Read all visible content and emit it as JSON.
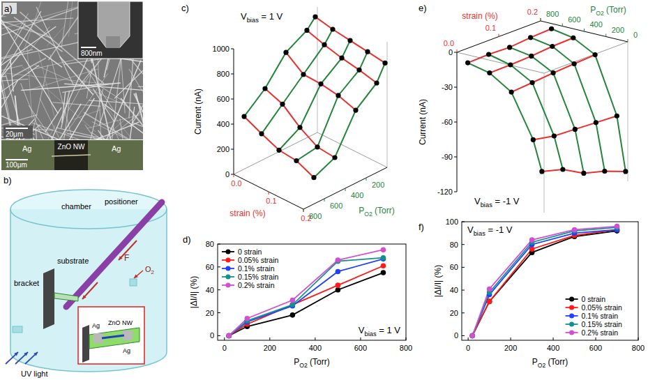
{
  "figure": {
    "a": {
      "label": "a)",
      "scale_main": "20μm",
      "scale_inset": "800nm",
      "electrode_left": "Ag",
      "nanowire": "ZnO NW",
      "electrode_right": "Ag",
      "scale_device": "100μm"
    },
    "b": {
      "label": "b)",
      "chamber": "chamber",
      "positioner": "positioner",
      "force": "F",
      "bracket": "bracket",
      "substrate": "substrate",
      "gas": [
        "O",
        "2"
      ],
      "light": "UV light",
      "inset_left": "Ag",
      "inset_wire": "ZnO NW",
      "inset_right": "Ag"
    }
  },
  "chart_data": [
    {
      "type": "surface3d",
      "panel": "c)",
      "annotation": [
        "V",
        "bias",
        " = 1 V"
      ],
      "x_label": [
        "P",
        "O2",
        " (Torr)"
      ],
      "strain_label": "strain (%)",
      "y_label": "Current (nA)",
      "x": [
        20,
        100,
        300,
        500,
        700
      ],
      "xlim": [
        0,
        800
      ],
      "xticks": [
        200,
        400,
        600,
        800
      ],
      "strain_lim": [
        0,
        0.2
      ],
      "strain_ticks": [
        {
          "value": 0,
          "label": "0.0"
        },
        {
          "value": 0.1,
          "label": "0.1"
        },
        {
          "value": 0.2,
          "label": "0.2"
        }
      ],
      "ylim": [
        0,
        1000
      ],
      "yticks": [
        0,
        200,
        400,
        600,
        800,
        1000
      ],
      "color": "#e8312f",
      "marker": "circle",
      "series": [
        {
          "strain": 0,
          "color": "#23843a",
          "values": [
            930,
            856,
            763,
            558,
            419
          ]
        },
        {
          "strain": 0.05,
          "color": "#23843a",
          "values": [
            900,
            810,
            657,
            504,
            351
          ]
        },
        {
          "strain": 0.1,
          "color": "#23843a",
          "values": [
            880,
            774,
            651,
            387,
            290
          ]
        },
        {
          "strain": 0.15,
          "color": "#23843a",
          "values": [
            860,
            748,
            628,
            301,
            275
          ]
        },
        {
          "strain": 0.2,
          "color": "#23843a",
          "values": [
            840,
            714,
            580,
            286,
            210
          ]
        }
      ]
    },
    {
      "type": "line",
      "panel": "d)",
      "annotation": [
        "V",
        "bias",
        " = 1 V"
      ],
      "x_label": [
        "P",
        "O2",
        " (Torr)"
      ],
      "y_label": "|ΔI/I| (%)",
      "x": [
        20,
        100,
        300,
        500,
        700
      ],
      "xlim": [
        -30,
        800
      ],
      "xticks": [
        0,
        200,
        400,
        600,
        800
      ],
      "ylim": [
        -4,
        80
      ],
      "yticks": [
        0,
        20,
        40,
        60,
        80
      ],
      "legend": "upper left",
      "marker": "circle",
      "series": [
        {
          "name": "0 strain",
          "color": "#000000",
          "values": [
            0,
            8,
            18,
            40,
            55
          ]
        },
        {
          "name": "0.05% strain",
          "color": "#ff1a1a",
          "values": [
            0,
            10,
            27,
            44,
            61
          ]
        },
        {
          "name": "0.1% strain",
          "color": "#2040ff",
          "values": [
            0,
            12,
            26,
            56,
            67
          ]
        },
        {
          "name": "0.15% strain",
          "color": "#12908e",
          "values": [
            0,
            13,
            27,
            65,
            68
          ]
        },
        {
          "name": "0.2% strain",
          "color": "#d24fd2",
          "values": [
            0,
            15,
            31,
            66,
            75
          ]
        }
      ]
    },
    {
      "type": "surface3d",
      "panel": "e)",
      "annotation": [
        "V",
        "bias",
        " = -1 V"
      ],
      "x_label": [
        "P",
        "O2",
        " (Torr)"
      ],
      "strain_label": "strain (%)",
      "y_label": "Current (nA)",
      "x": [
        20,
        100,
        300,
        500,
        700
      ],
      "xlim": [
        0,
        800
      ],
      "xticks": [
        0,
        200,
        400,
        600,
        800
      ],
      "strain_lim": [
        0,
        0.2
      ],
      "strain_ticks": [
        {
          "value": 0,
          "label": "0.0"
        },
        {
          "value": 0.1,
          "label": "0.1"
        },
        {
          "value": 0.2,
          "label": "0.2"
        }
      ],
      "ylim": [
        -120,
        0
      ],
      "yticks": [
        -120,
        -90,
        -60,
        -30,
        0
      ],
      "color": "#e8312f",
      "marker": "circle",
      "series": [
        {
          "strain": 0,
          "color": "#23843a",
          "values": [
            -85,
            -59.5,
            -23,
            -11,
            -6.8
          ]
        },
        {
          "strain": 0.05,
          "color": "#23843a",
          "values": [
            -90,
            -63,
            -21.6,
            -10.8,
            -6.3
          ]
        },
        {
          "strain": 0.1,
          "color": "#23843a",
          "values": [
            -100,
            -64,
            -20,
            -10,
            -7
          ]
        },
        {
          "strain": 0.15,
          "color": "#23843a",
          "values": [
            -105,
            -65,
            -18.9,
            -8.4,
            -5.3
          ]
        },
        {
          "strain": 0.2,
          "color": "#23843a",
          "values": [
            -112,
            -66,
            -17.9,
            -7.8,
            -4.5
          ]
        }
      ]
    },
    {
      "type": "line",
      "panel": "f)",
      "annotation": [
        "V",
        "bias",
        " = -1 V"
      ],
      "x_label": [
        "P",
        "O2",
        " (Torr)"
      ],
      "y_label": "|ΔI/I| (%)",
      "x": [
        20,
        100,
        300,
        500,
        700
      ],
      "xlim": [
        -30,
        800
      ],
      "xticks": [
        0,
        200,
        400,
        600,
        800
      ],
      "ylim": [
        -4,
        100
      ],
      "yticks": [
        0,
        20,
        40,
        60,
        80,
        100
      ],
      "legend": "lower right",
      "marker": "circle",
      "series": [
        {
          "name": "0 strain",
          "color": "#000000",
          "values": [
            0,
            30,
            73,
            87,
            92
          ]
        },
        {
          "name": "0.05% strain",
          "color": "#ff1a1a",
          "values": [
            0,
            30,
            76,
            88,
            93
          ]
        },
        {
          "name": "0.1% strain",
          "color": "#2040ff",
          "values": [
            0,
            36,
            80,
            90,
            93
          ]
        },
        {
          "name": "0.15% strain",
          "color": "#12908e",
          "values": [
            0,
            38,
            82,
            92,
            95
          ]
        },
        {
          "name": "0.2% strain",
          "color": "#d24fd2",
          "values": [
            0,
            41,
            84,
            93,
            96
          ]
        }
      ]
    }
  ]
}
